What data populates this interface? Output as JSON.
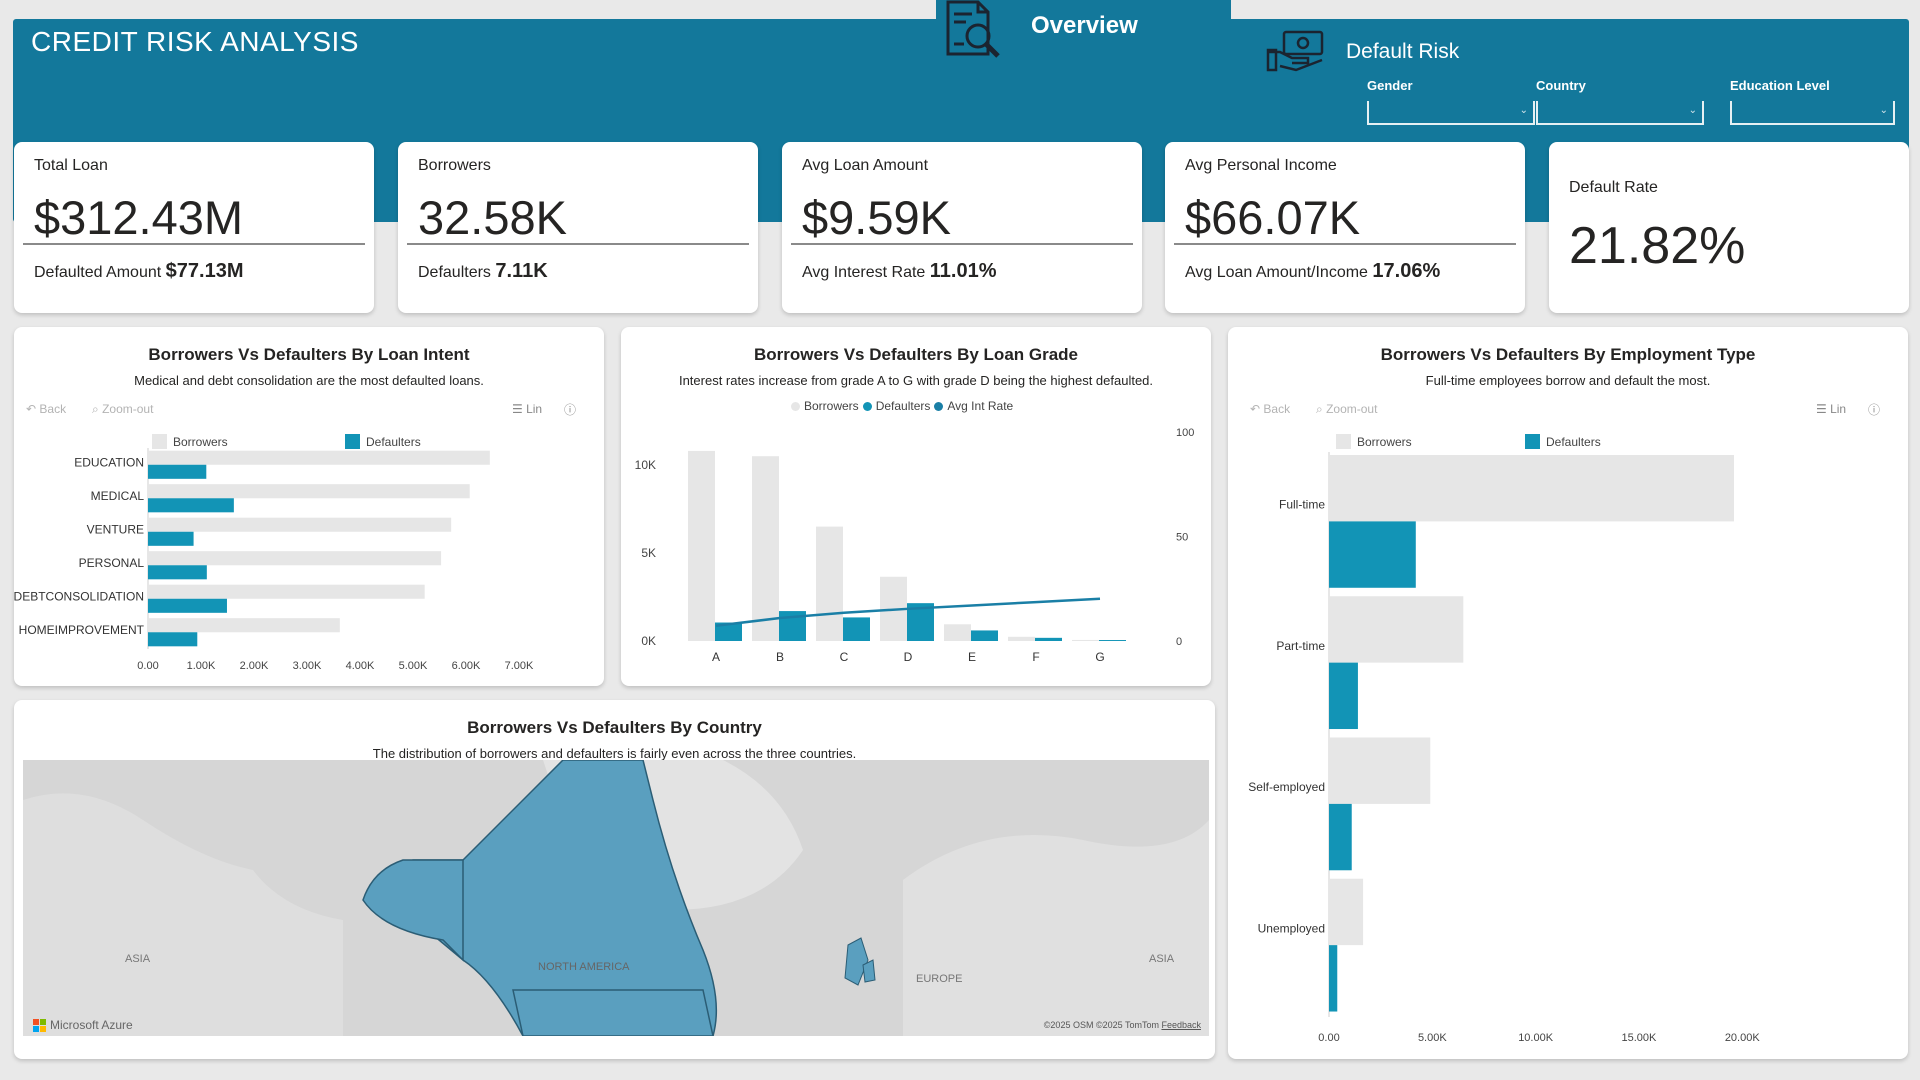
{
  "header": {
    "title": "CREDIT RISK ANALYSIS",
    "nav_overview": "Overview",
    "nav_default_risk": "Default Risk",
    "slicers": [
      {
        "label": "Gender"
      },
      {
        "label": "Country"
      },
      {
        "label": "Education Level"
      }
    ]
  },
  "kpis": [
    {
      "title": "Total Loan",
      "value": "$312.43M",
      "sub_label": "Defaulted Amount",
      "sub_value": "$77.13M"
    },
    {
      "title": "Borrowers",
      "value": "32.58K",
      "sub_label": "Defaulters",
      "sub_value": "7.11K"
    },
    {
      "title": "Avg Loan Amount",
      "value": "$9.59K",
      "sub_label": "Avg Interest Rate",
      "sub_value": "11.01%"
    },
    {
      "title": "Avg Personal Income",
      "value": "$66.07K",
      "sub_label": "Avg Loan Amount/Income",
      "sub_value": "17.06%"
    },
    {
      "title": "Default Rate",
      "value": "21.82%"
    }
  ],
  "toolbar": {
    "back": "Back",
    "zoom_out": "Zoom-out",
    "lin": "Lin"
  },
  "colors": {
    "banner": "#13789b",
    "borrowers": "#e6e6e6",
    "defaulters": "#1294b6",
    "line": "#1a7fa6"
  },
  "map": {
    "title": "Borrowers Vs Defaulters By Country",
    "subtitle": "The distribution of borrowers and defaulters is fairly even across the three countries.",
    "labels": {
      "north_america": "NORTH AMERICA",
      "europe": "EUROPE",
      "asia_left": "ASIA",
      "asia_right": "ASIA"
    },
    "attribution": "Microsoft Azure",
    "copyright": "©2025 OSM ©2025 TomTom",
    "feedback": "Feedback"
  },
  "chart_data": [
    {
      "type": "bar",
      "title": "Borrowers Vs Defaulters By Loan Intent",
      "subtitle": "Medical and debt consolidation are the most defaulted loans.",
      "orientation": "horizontal",
      "categories": [
        "EDUCATION",
        "MEDICAL",
        "VENTURE",
        "PERSONAL",
        "DEBTCONSOLIDATION",
        "HOMEIMPROVEMENT"
      ],
      "series": [
        {
          "name": "Borrowers",
          "values": [
            6450,
            6070,
            5720,
            5530,
            5220,
            3620
          ]
        },
        {
          "name": "Defaulters",
          "values": [
            1100,
            1620,
            860,
            1110,
            1490,
            930
          ]
        }
      ],
      "xticks": [
        "0.00",
        "1.00K",
        "2.00K",
        "3.00K",
        "4.00K",
        "5.00K",
        "6.00K",
        "7.00K"
      ],
      "xlim": [
        0,
        7000
      ]
    },
    {
      "type": "bar",
      "title": "Borrowers Vs Defaulters By Loan Grade",
      "subtitle": "Interest rates increase from grade A to G with grade D being the highest defaulted.",
      "categories": [
        "A",
        "B",
        "C",
        "D",
        "E",
        "F",
        "G"
      ],
      "series": [
        {
          "name": "Borrowers",
          "values": [
            10800,
            10500,
            6500,
            3650,
            950,
            240,
            60
          ]
        },
        {
          "name": "Defaulters",
          "values": [
            1050,
            1700,
            1340,
            2150,
            600,
            180,
            55
          ]
        },
        {
          "name": "Avg Int Rate",
          "type": "line",
          "axis": "right",
          "values": [
            7.3,
            11.0,
            13.5,
            15.4,
            17.0,
            18.6,
            20.2
          ]
        }
      ],
      "yticks": [
        "0K",
        "5K",
        "10K"
      ],
      "ylim": [
        0,
        12000
      ],
      "y2ticks": [
        "0",
        "50",
        "100"
      ],
      "y2lim": [
        0,
        100
      ]
    },
    {
      "type": "bar",
      "title": "Borrowers Vs Defaulters By Employment Type",
      "subtitle": "Full-time employees borrow and default the most.",
      "orientation": "horizontal",
      "categories": [
        "Full-time",
        "Part-time",
        "Self-employed",
        "Unemployed"
      ],
      "series": [
        {
          "name": "Borrowers",
          "values": [
            19600,
            6500,
            4900,
            1650
          ]
        },
        {
          "name": "Defaulters",
          "values": [
            4200,
            1400,
            1100,
            400
          ]
        }
      ],
      "xticks": [
        "0.00",
        "5.00K",
        "10.00K",
        "15.00K",
        "20.00K"
      ],
      "xlim": [
        0,
        21000
      ]
    }
  ]
}
